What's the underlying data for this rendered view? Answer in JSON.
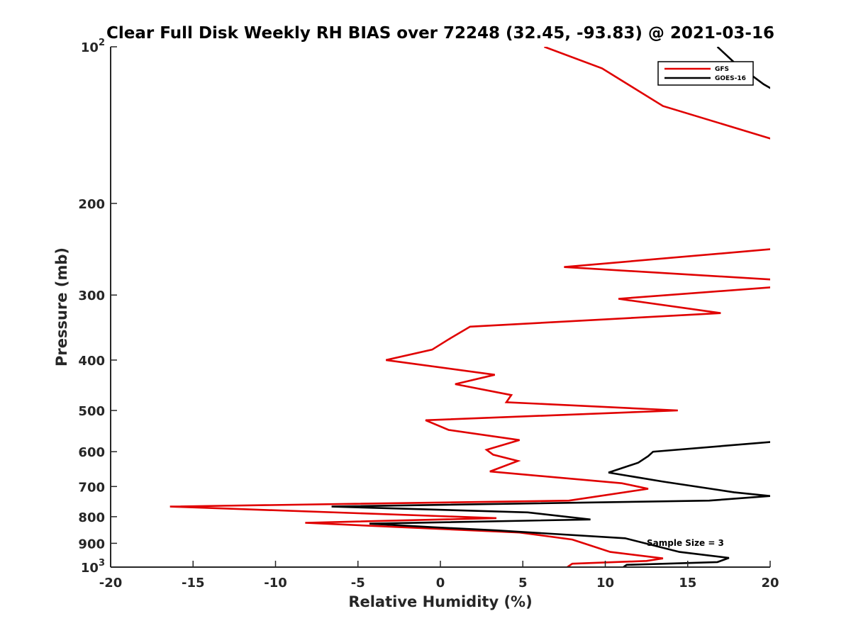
{
  "chart_data": {
    "type": "line",
    "title": "Clear Full Disk Weekly RH BIAS over 72248 (32.45, -93.83) @ 2021-03-16",
    "xlabel": "Relative Humidity (%)",
    "ylabel": "Pressure (mb)",
    "xlim": [
      -20,
      20
    ],
    "ylim": [
      100,
      1000
    ],
    "yscale": "log",
    "yreversed": true,
    "grid": false,
    "legend_position": "top-right",
    "x_ticks": [
      {
        "value": -20,
        "label": "-20"
      },
      {
        "value": -15,
        "label": "-15"
      },
      {
        "value": -10,
        "label": "-10"
      },
      {
        "value": -5,
        "label": "-5"
      },
      {
        "value": 0,
        "label": "0"
      },
      {
        "value": 5,
        "label": "5"
      },
      {
        "value": 10,
        "label": "10"
      },
      {
        "value": 15,
        "label": "15"
      },
      {
        "value": 20,
        "label": "20"
      }
    ],
    "y_ticks": [
      {
        "value": 100,
        "base": "10",
        "exp": "2"
      },
      {
        "value": 200,
        "label": "200"
      },
      {
        "value": 300,
        "label": "300"
      },
      {
        "value": 400,
        "label": "400"
      },
      {
        "value": 500,
        "label": "500"
      },
      {
        "value": 600,
        "label": "600"
      },
      {
        "value": 700,
        "label": "700"
      },
      {
        "value": 800,
        "label": "800"
      },
      {
        "value": 900,
        "label": "900"
      },
      {
        "value": 1000,
        "base": "10",
        "exp": "3"
      }
    ],
    "annotation": "Sample Size = 3",
    "series": [
      {
        "name": "GFS",
        "color": "#e00000",
        "points": [
          [
            6.3,
            100
          ],
          [
            9.8,
            110
          ],
          [
            13.5,
            130
          ],
          [
            20.0,
            150
          ],
          [
            20.5,
            151
          ],
          [
            20.5,
            244
          ],
          [
            20.0,
            245
          ],
          [
            7.5,
            265
          ],
          [
            20.0,
            280
          ],
          [
            20.5,
            281
          ],
          [
            20.5,
            289
          ],
          [
            20.0,
            290
          ],
          [
            10.8,
            305
          ],
          [
            17.0,
            325
          ],
          [
            1.8,
            345
          ],
          [
            0.5,
            365
          ],
          [
            -0.5,
            382
          ],
          [
            -3.3,
            400
          ],
          [
            3.3,
            427
          ],
          [
            0.9,
            445
          ],
          [
            4.3,
            467
          ],
          [
            4.0,
            482
          ],
          [
            14.4,
            500
          ],
          [
            -0.9,
            522
          ],
          [
            0.5,
            545
          ],
          [
            4.8,
            570
          ],
          [
            2.8,
            595
          ],
          [
            3.2,
            608
          ],
          [
            4.7,
            625
          ],
          [
            3.0,
            655
          ],
          [
            11.0,
            690
          ],
          [
            12.6,
            707
          ],
          [
            7.8,
            745
          ],
          [
            -16.4,
            765
          ],
          [
            3.4,
            805
          ],
          [
            -8.2,
            822
          ],
          [
            4.8,
            858
          ],
          [
            8.0,
            885
          ],
          [
            10.3,
            935
          ],
          [
            13.5,
            962
          ],
          [
            12.5,
            973
          ],
          [
            8.0,
            985
          ],
          [
            7.7,
            1000
          ]
        ]
      },
      {
        "name": "GOES-16",
        "color": "#000000",
        "points": [
          [
            16.8,
            100
          ],
          [
            17.8,
            107
          ],
          [
            19.6,
            118
          ],
          [
            20.0,
            120
          ],
          [
            20.5,
            121
          ],
          [
            20.5,
            574
          ],
          [
            20.0,
            575
          ],
          [
            12.9,
            600
          ],
          [
            12.6,
            612
          ],
          [
            12.0,
            630
          ],
          [
            10.2,
            658
          ],
          [
            13.5,
            685
          ],
          [
            17.8,
            718
          ],
          [
            20.0,
            730
          ],
          [
            16.3,
            745
          ],
          [
            -6.6,
            765
          ],
          [
            5.3,
            785
          ],
          [
            9.1,
            810
          ],
          [
            -4.3,
            825
          ],
          [
            -0.5,
            838
          ],
          [
            3.4,
            850
          ],
          [
            11.2,
            880
          ],
          [
            14.5,
            935
          ],
          [
            17.5,
            960
          ],
          [
            16.8,
            978
          ],
          [
            11.3,
            990
          ],
          [
            11.1,
            1000
          ]
        ]
      }
    ]
  }
}
